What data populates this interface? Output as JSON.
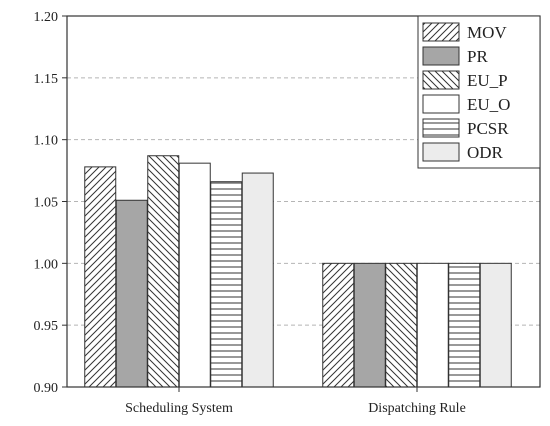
{
  "chart_data": {
    "type": "bar",
    "title": "",
    "xlabel": "",
    "ylabel": "",
    "categories": [
      "Scheduling System",
      "Dispatching Rule"
    ],
    "ylim": [
      0.9,
      1.2
    ],
    "yticks": [
      "0.90",
      "0.95",
      "1.00",
      "1.05",
      "1.10",
      "1.15",
      "1.20"
    ],
    "grid": "horizontal dashed",
    "legend_position": "top-right",
    "series": [
      {
        "name": "MOV",
        "values": [
          1.078,
          1.0
        ],
        "pattern": "diag-forward",
        "fill": "#ffffff"
      },
      {
        "name": "PR",
        "values": [
          1.051,
          1.0
        ],
        "pattern": "solid",
        "fill": "#a6a6a6"
      },
      {
        "name": "EU_P",
        "values": [
          1.087,
          1.0
        ],
        "pattern": "diag-back",
        "fill": "#ffffff"
      },
      {
        "name": "EU_O",
        "values": [
          1.081,
          1.0
        ],
        "pattern": "none",
        "fill": "#ffffff"
      },
      {
        "name": "PCSR",
        "values": [
          1.066,
          1.0
        ],
        "pattern": "horizontal",
        "fill": "#ffffff"
      },
      {
        "name": "ODR",
        "values": [
          1.073,
          1.0
        ],
        "pattern": "solid",
        "fill": "#ececec"
      }
    ]
  }
}
